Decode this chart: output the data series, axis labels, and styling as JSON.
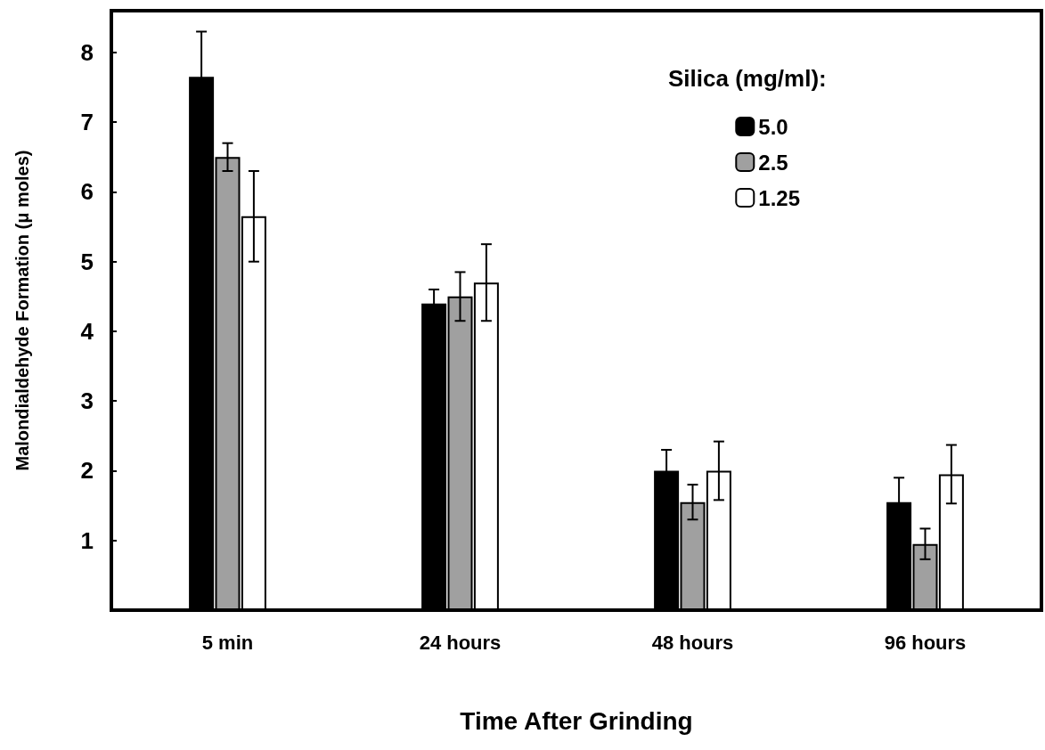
{
  "chart_data": {
    "type": "bar",
    "xlabel": "Time After Grinding",
    "ylabel": "Malondialdehyde Formation (μ moles)",
    "legend_title": "Silica (mg/ml):",
    "categories": [
      "5 min",
      "24 hours",
      "48 hours",
      "96 hours"
    ],
    "series": [
      {
        "name": "5.0",
        "color": "#000000",
        "values": [
          7.65,
          4.4,
          2.0,
          1.55
        ],
        "errors": [
          0.65,
          0.2,
          0.3,
          0.35
        ]
      },
      {
        "name": "2.5",
        "color": "#a0a0a0",
        "values": [
          6.5,
          4.5,
          1.55,
          0.95
        ],
        "errors": [
          0.2,
          0.35,
          0.25,
          0.22
        ]
      },
      {
        "name": "1.25",
        "color": "#ffffff",
        "values": [
          5.65,
          4.7,
          2.0,
          1.95
        ],
        "errors": [
          0.65,
          0.55,
          0.42,
          0.42
        ]
      }
    ],
    "ylim": [
      0,
      8.6
    ],
    "yticks": [
      1,
      2,
      3,
      4,
      5,
      6,
      7,
      8
    ],
    "grid": false,
    "legend": "top right"
  }
}
